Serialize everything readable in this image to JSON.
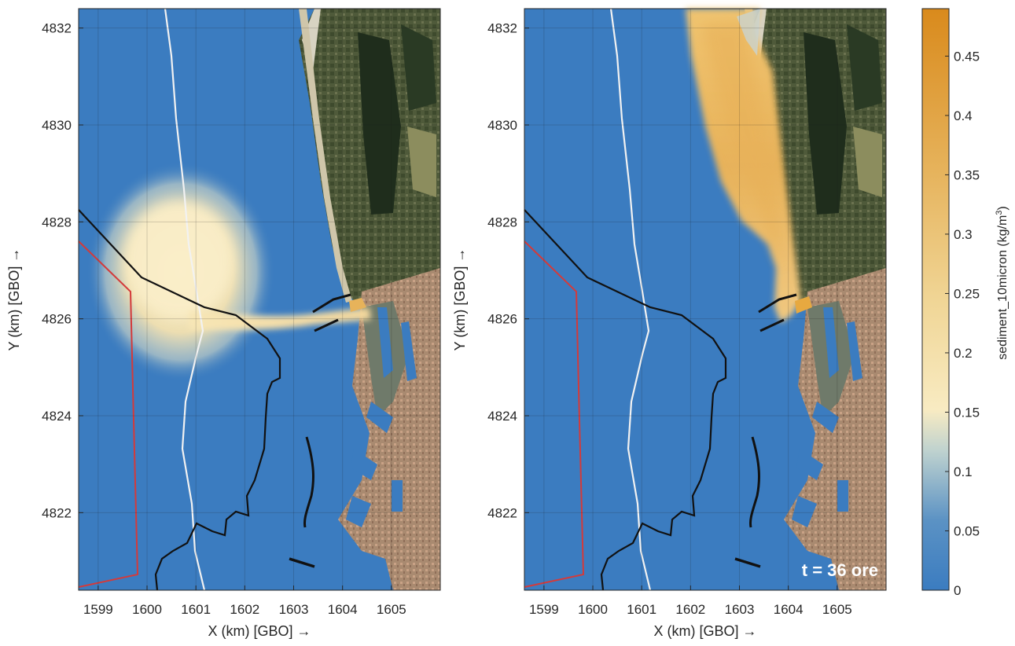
{
  "chart_data": [
    {
      "type": "heatmap",
      "xlabel": "X (km) [GBO] →",
      "ylabel": "Y (km) [GBO] →",
      "xlim": [
        1598.6,
        1606.0
      ],
      "ylim": [
        4820.4,
        4832.4
      ],
      "x_ticks": [
        "1599",
        "1600",
        "1601",
        "1602",
        "1603",
        "1604",
        "1605"
      ],
      "x_tick_values": [
        1599,
        1600,
        1601,
        1602,
        1603,
        1604,
        1605
      ],
      "y_ticks": [
        "4822",
        "4824",
        "4826",
        "4828",
        "4830",
        "4832"
      ],
      "y_tick_values": [
        4822,
        4824,
        4826,
        4828,
        4830,
        4832
      ],
      "grid": true,
      "plume": {
        "shape": "circular plume around (1601.6, 4826.9) fed by a narrow jet from the port mouth near (1604.6, 4826.2)",
        "peak_concentration": 0.15
      },
      "annotation": ""
    },
    {
      "type": "heatmap",
      "xlabel": "X (km) [GBO] →",
      "ylabel": "Y (km) [GBO] →",
      "xlim": [
        1598.6,
        1606.0
      ],
      "ylim": [
        4820.4,
        4832.4
      ],
      "x_ticks": [
        "1599",
        "1600",
        "1601",
        "1602",
        "1603",
        "1604",
        "1605"
      ],
      "x_tick_values": [
        1599,
        1600,
        1601,
        1602,
        1603,
        1604,
        1605
      ],
      "y_ticks": [
        "4822",
        "4824",
        "4826",
        "4828",
        "4830",
        "4832"
      ],
      "y_tick_values": [
        4822,
        4824,
        4826,
        4828,
        4830,
        4832
      ],
      "grid": true,
      "plume": {
        "shape": "elongated band along the coast from the port mouth (1604.5, 4826.2) northward past 4832.4",
        "peak_concentration": 0.35
      },
      "annotation": "t = 36 ore"
    }
  ],
  "colorbar": {
    "label": "sediment_10micron (kg/m",
    "label_sup": "3",
    "label_end": ")",
    "min": 0,
    "max": 0.49,
    "ticks": [
      "0",
      "0.05",
      "0.1",
      "0.15",
      "0.2",
      "0.25",
      "0.3",
      "0.35",
      "0.4",
      "0.45"
    ],
    "tick_values": [
      0,
      0.05,
      0.1,
      0.15,
      0.2,
      0.25,
      0.3,
      0.35,
      0.4,
      0.45
    ]
  },
  "colors": {
    "sea": "#3b7cc0",
    "low": "#3b7cc0",
    "mid": "#f8e8b8",
    "high": "#d98a1c",
    "coastline": "#111111",
    "red_boundary": "#d43a3a",
    "white_line": "#f2f2f2",
    "land": "#6b6a4a",
    "urban": "#a98a70"
  }
}
